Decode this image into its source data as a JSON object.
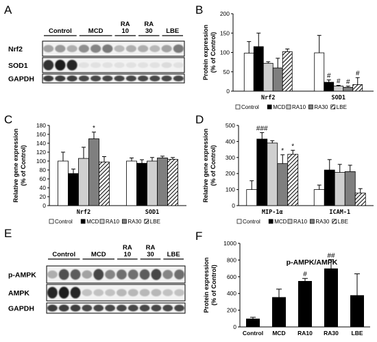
{
  "colors": {
    "Control": "#ffffff",
    "MCD": "#000000",
    "RA10": "#cfcfcf",
    "RA30": "#7f7f7f",
    "LBE": "hatch"
  },
  "panels": {
    "A": {
      "letter": "A",
      "groups": [
        "Control",
        "MCD",
        "RA",
        "RA",
        "LBE"
      ],
      "group_sub": [
        "",
        "",
        "10",
        "30",
        ""
      ],
      "rows": [
        "Nrf2",
        "SOD1",
        "GAPDH"
      ]
    },
    "E": {
      "letter": "E",
      "groups": [
        "Control",
        "MCD",
        "RA",
        "RA",
        "LBE"
      ],
      "group_sub": [
        "",
        "",
        "10",
        "30",
        ""
      ],
      "rows": [
        "p-AMPK",
        "AMPK",
        "GAPDH"
      ]
    }
  },
  "chart_data": [
    {
      "panel": "B",
      "type": "bar",
      "ylabel": [
        "Protein expression",
        "(% of Control)"
      ],
      "ylim": [
        0,
        200
      ],
      "yticks": [
        0,
        50,
        100,
        150,
        200
      ],
      "categories": [
        "Nrf2",
        "SOD1"
      ],
      "series": [
        {
          "name": "Control",
          "values": [
            98,
            99
          ],
          "errors": [
            30,
            45
          ]
        },
        {
          "name": "MCD",
          "values": [
            115,
            23
          ],
          "errors": [
            35,
            6
          ]
        },
        {
          "name": "RA10",
          "values": [
            72,
            13
          ],
          "errors": [
            4,
            2
          ]
        },
        {
          "name": "RA30",
          "values": [
            60,
            10
          ],
          "errors": [
            25,
            3
          ]
        },
        {
          "name": "LBE",
          "values": [
            102,
            17
          ],
          "errors": [
            7,
            18
          ]
        }
      ],
      "annotations": [
        [
          "",
          "",
          "",
          "",
          ""
        ],
        [
          "",
          "#",
          "#",
          "#",
          "#"
        ]
      ],
      "legend": [
        "Control",
        "MCD",
        "RA10",
        "RA30",
        "LBE"
      ],
      "legend_position": "bottom"
    },
    {
      "panel": "C",
      "type": "bar",
      "ylabel": [
        "Relative gene expression",
        "(% of Control)"
      ],
      "ylim": [
        0,
        180
      ],
      "yticks": [
        0,
        20,
        40,
        60,
        80,
        100,
        120,
        140,
        160,
        180
      ],
      "categories": [
        "Nrf2",
        "SOD1"
      ],
      "series": [
        {
          "name": "Control",
          "values": [
            100,
            100
          ],
          "errors": [
            20,
            7
          ]
        },
        {
          "name": "MCD",
          "values": [
            72,
            95
          ],
          "errors": [
            10,
            8
          ]
        },
        {
          "name": "RA10",
          "values": [
            106,
            100
          ],
          "errors": [
            25,
            8
          ]
        },
        {
          "name": "RA30",
          "values": [
            150,
            107
          ],
          "errors": [
            15,
            4
          ]
        },
        {
          "name": "LBE",
          "values": [
            98,
            104
          ],
          "errors": [
            12,
            4
          ]
        }
      ],
      "annotations": [
        [
          "",
          "",
          "",
          "*",
          ""
        ],
        [
          "",
          "",
          "",
          "",
          ""
        ]
      ],
      "legend": [
        "Control",
        "MCD",
        "RA10",
        "RA30",
        "LBE"
      ],
      "legend_position": "bottom"
    },
    {
      "panel": "D",
      "type": "bar",
      "ylabel": [
        "Relative gene expression",
        "(% of Control)"
      ],
      "ylim": [
        0,
        500
      ],
      "yticks": [
        0,
        100,
        200,
        300,
        400,
        500
      ],
      "categories": [
        "MIP-1α",
        "ICAM-1"
      ],
      "series": [
        {
          "name": "Control",
          "values": [
            100,
            100
          ],
          "errors": [
            55,
            28
          ]
        },
        {
          "name": "MCD",
          "values": [
            415,
            222
          ],
          "errors": [
            40,
            65
          ]
        },
        {
          "name": "RA10",
          "values": [
            390,
            207
          ],
          "errors": [
            15,
            50
          ]
        },
        {
          "name": "RA30",
          "values": [
            262,
            212
          ],
          "errors": [
            55,
            40
          ]
        },
        {
          "name": "LBE",
          "values": [
            320,
            78
          ],
          "errors": [
            25,
            28
          ]
        }
      ],
      "annotations": [
        [
          "",
          "###",
          "",
          "*",
          "*"
        ],
        [
          "",
          "",
          "",
          "",
          ""
        ]
      ],
      "legend": [
        "Control",
        "MCD",
        "RA10",
        "RA30",
        "LBE"
      ],
      "legend_position": "bottom"
    },
    {
      "panel": "F",
      "type": "bar",
      "title": "p-AMPK/AMPK",
      "ylabel": [
        "Protein expression",
        "(% of Control)"
      ],
      "ylim": [
        0,
        1000
      ],
      "yticks": [
        0,
        200,
        400,
        600,
        800,
        1000
      ],
      "categories": [
        "Control",
        "MCD",
        "RA10",
        "RA30",
        "LBE"
      ],
      "values": [
        95,
        352,
        545,
        695,
        375
      ],
      "errors": [
        20,
        100,
        35,
        110,
        260
      ],
      "annotations": [
        "",
        "",
        "#",
        "##",
        ""
      ]
    }
  ],
  "panel_letters": {
    "B": "B",
    "C": "C",
    "D": "D",
    "F": "F"
  }
}
